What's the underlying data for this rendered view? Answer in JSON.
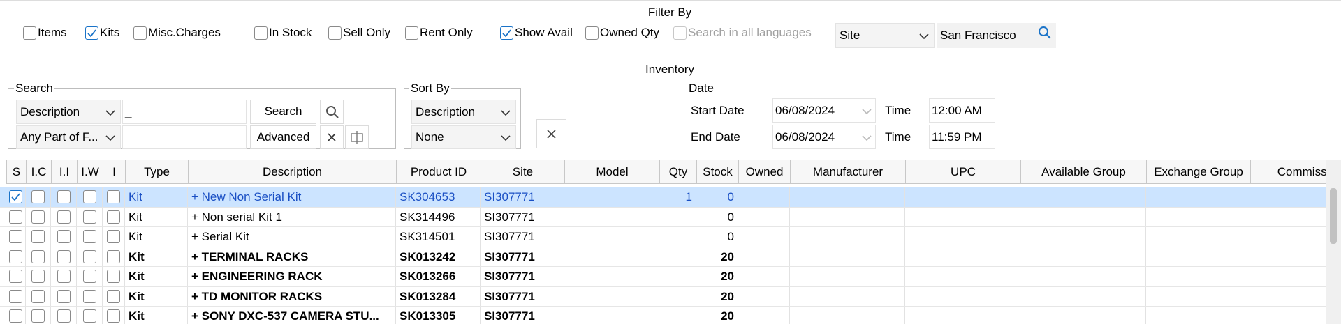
{
  "filter_by": {
    "title": "Filter By",
    "options": [
      {
        "label": "Items",
        "checked": false
      },
      {
        "label": "Kits",
        "checked": true
      },
      {
        "label": "Misc.Charges",
        "checked": false
      },
      {
        "label": "In Stock",
        "checked": false
      },
      {
        "label": "Sell Only",
        "checked": false
      },
      {
        "label": "Rent Only",
        "checked": false
      },
      {
        "label": "Show Avail",
        "checked": true
      },
      {
        "label": "Owned Qty",
        "checked": false
      },
      {
        "label": "Search in all languages",
        "checked": false,
        "disabled": true
      }
    ],
    "site_dropdown": "Site",
    "location": "San Francisco"
  },
  "inventory_title": "Inventory",
  "search": {
    "legend": "Search",
    "field_dropdown": "Description",
    "match_dropdown": "Any Part of F...",
    "query": "_",
    "search_button": "Search",
    "advanced_button": "Advanced"
  },
  "sort_by": {
    "legend": "Sort By",
    "primary": "Description",
    "secondary": "None"
  },
  "date": {
    "legend": "Date",
    "start_label": "Start Date",
    "start_date": "06/08/2024",
    "start_time_label": "Time",
    "start_time": "12:00 AM",
    "end_label": "End Date",
    "end_date": "06/08/2024",
    "end_time_label": "Time",
    "end_time": "11:59 PM"
  },
  "table": {
    "columns": [
      "S",
      "I.C",
      "I.I",
      "I.W",
      "I",
      "Type",
      "Description",
      "Product ID",
      "Site",
      "Model",
      "Qty",
      "Stock",
      "Owned",
      "Manufacturer",
      "UPC",
      "Available Group",
      "Exchange Group",
      "Commission"
    ],
    "rows": [
      {
        "checked": [
          true,
          false,
          false,
          false,
          false
        ],
        "type": "Kit",
        "description": "+ New Non Serial Kit",
        "product_id": "SK304653",
        "site": "SI307771",
        "qty": 1,
        "stock": 0,
        "selected": true,
        "bold": false
      },
      {
        "checked": [
          false,
          false,
          false,
          false,
          false
        ],
        "type": "Kit",
        "description": "+ Non serial Kit 1",
        "product_id": "SK314496",
        "site": "SI307771",
        "qty": null,
        "stock": 0,
        "selected": false,
        "bold": false
      },
      {
        "checked": [
          false,
          false,
          false,
          false,
          false
        ],
        "type": "Kit",
        "description": "+ Serial Kit",
        "product_id": "SK314501",
        "site": "SI307771",
        "qty": null,
        "stock": 0,
        "selected": false,
        "bold": false
      },
      {
        "checked": [
          false,
          false,
          false,
          false,
          false
        ],
        "type": "Kit",
        "description": "+ TERMINAL RACKS",
        "product_id": "SK013242",
        "site": "SI307771",
        "qty": null,
        "stock": 20,
        "selected": false,
        "bold": true
      },
      {
        "checked": [
          false,
          false,
          false,
          false,
          false
        ],
        "type": "Kit",
        "description": "+ ENGINEERING RACK",
        "product_id": "SK013266",
        "site": "SI307771",
        "qty": null,
        "stock": 20,
        "selected": false,
        "bold": true
      },
      {
        "checked": [
          false,
          false,
          false,
          false,
          false
        ],
        "type": "Kit",
        "description": "+ TD MONITOR RACKS",
        "product_id": "SK013284",
        "site": "SI307771",
        "qty": null,
        "stock": 20,
        "selected": false,
        "bold": true
      },
      {
        "checked": [
          false,
          false,
          false,
          false,
          false
        ],
        "type": "Kit",
        "description": "+ SONY DXC-537 CAMERA STU...",
        "product_id": "SK013305",
        "site": "SI307771",
        "qty": null,
        "stock": 20,
        "selected": false,
        "bold": true
      }
    ]
  }
}
